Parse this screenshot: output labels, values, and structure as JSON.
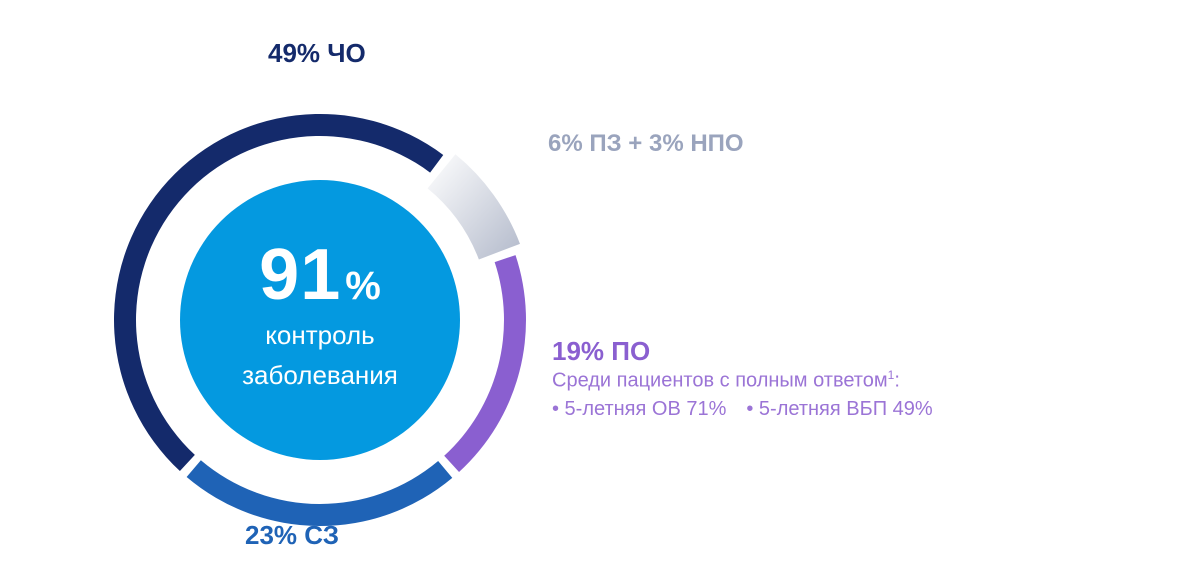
{
  "chart_data": {
    "type": "donut",
    "title": "",
    "series": [
      {
        "label": "49% ЧО",
        "value": 49,
        "color": "#142a6b"
      },
      {
        "label": "6% ПЗ + 3% НПО",
        "value": 9,
        "color": "#9aa4bd"
      },
      {
        "label": "19% ПО",
        "value": 19,
        "color": "#8a5fd0"
      },
      {
        "label": "23% СЗ",
        "value": 23,
        "color": "#1f63b6"
      }
    ],
    "center": {
      "value": "91",
      "unit": "%",
      "caption_line1": "контроль",
      "caption_line2": "заболевания",
      "color": "#0499e0"
    }
  },
  "notes": {
    "po_intro": "Среди пациентов с полным ответом",
    "po_footnote": "1",
    "po_intro_suffix": ":",
    "bullet1": "• 5-летняя ОВ 71%",
    "bullet2": "• 5-летняя ВБП 49%"
  }
}
